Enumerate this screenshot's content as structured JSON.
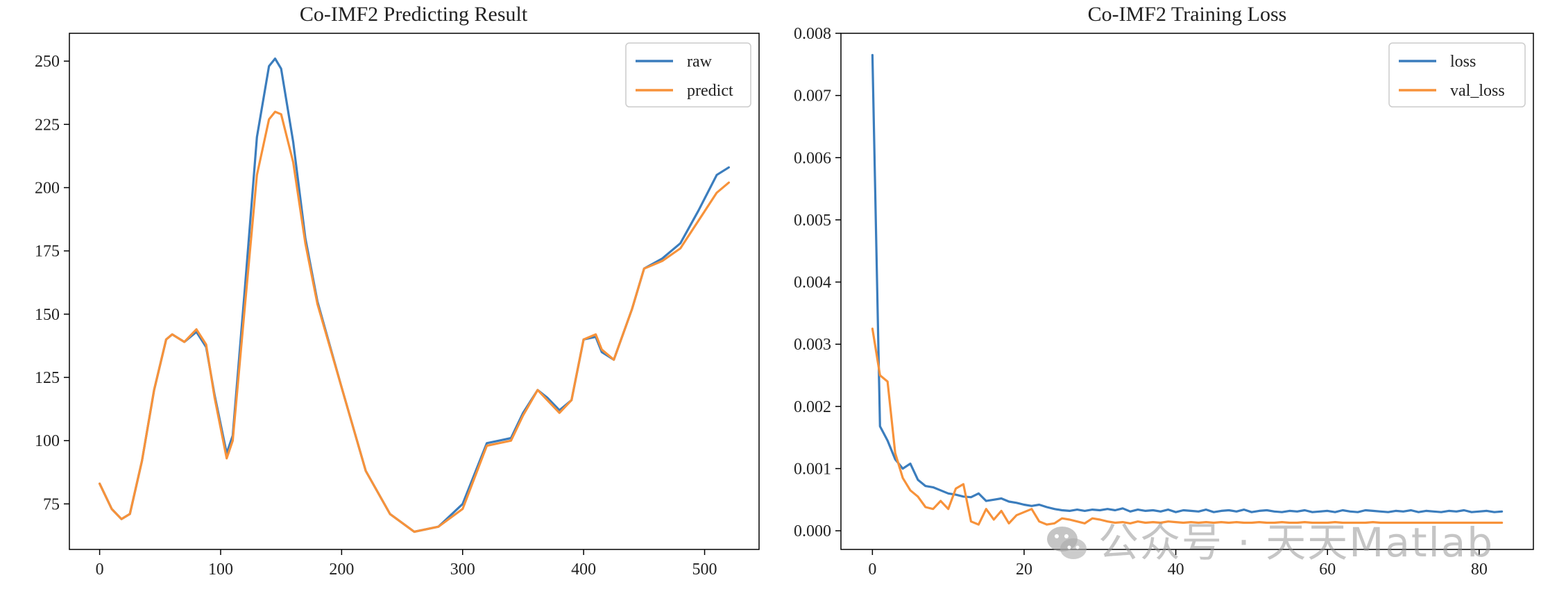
{
  "colors": {
    "raw": "#3b7dbd",
    "predict": "#f7923a"
  },
  "watermark": {
    "text": "公众号 · 天天Matlab",
    "icon": "wechat-icon"
  },
  "chart_data": [
    {
      "type": "line",
      "title": "Co-IMF2 Predicting Result",
      "xlabel": "",
      "ylabel": "",
      "xlim": [
        -25,
        545
      ],
      "ylim": [
        57,
        261
      ],
      "xticks": [
        0,
        100,
        200,
        300,
        400,
        500
      ],
      "yticks": [
        75,
        100,
        125,
        150,
        175,
        200,
        225,
        250
      ],
      "grid": false,
      "legend": "top-right",
      "series": [
        {
          "name": "raw",
          "x": [
            0,
            10,
            18,
            25,
            35,
            45,
            55,
            60,
            70,
            80,
            88,
            95,
            105,
            110,
            120,
            130,
            140,
            145,
            150,
            160,
            170,
            180,
            200,
            220,
            240,
            260,
            280,
            300,
            320,
            330,
            340,
            350,
            362,
            370,
            380,
            390,
            400,
            410,
            415,
            425,
            440,
            450,
            465,
            480,
            495,
            510,
            520
          ],
          "y": [
            83,
            73,
            69,
            71,
            92,
            120,
            140,
            142,
            139,
            143,
            137,
            118,
            95,
            102,
            160,
            220,
            248,
            251,
            247,
            218,
            180,
            155,
            121,
            88,
            71,
            64,
            66,
            75,
            99,
            100,
            101,
            111,
            120,
            117,
            112,
            116,
            140,
            141,
            135,
            132,
            152,
            168,
            172,
            178,
            191,
            205,
            208
          ]
        },
        {
          "name": "predict",
          "x": [
            0,
            10,
            18,
            25,
            35,
            45,
            55,
            60,
            70,
            80,
            88,
            95,
            105,
            110,
            120,
            130,
            140,
            145,
            150,
            160,
            170,
            180,
            200,
            220,
            240,
            260,
            280,
            300,
            320,
            330,
            340,
            350,
            362,
            370,
            380,
            390,
            400,
            410,
            415,
            425,
            440,
            450,
            465,
            480,
            495,
            510,
            520
          ],
          "y": [
            83,
            73,
            69,
            71,
            92,
            120,
            140,
            142,
            139,
            144,
            138,
            117,
            93,
            100,
            153,
            205,
            227,
            230,
            229,
            210,
            178,
            154,
            121,
            88,
            71,
            64,
            66,
            73,
            98,
            99,
            100,
            110,
            120,
            116,
            111,
            116,
            140,
            142,
            136,
            132,
            152,
            168,
            171,
            176,
            187,
            198,
            202
          ]
        }
      ]
    },
    {
      "type": "line",
      "title": "Co-IMF2 Training Loss",
      "xlabel": "",
      "ylabel": "",
      "xlim": [
        -4.15,
        87.15
      ],
      "ylim": [
        -0.0003,
        0.008
      ],
      "xticks": [
        0,
        20,
        40,
        60,
        80
      ],
      "yticks": [
        0.0,
        0.001,
        0.002,
        0.003,
        0.004,
        0.005,
        0.006,
        0.007,
        0.008
      ],
      "ytick_labels": [
        "0.000",
        "0.001",
        "0.002",
        "0.003",
        "0.004",
        "0.005",
        "0.006",
        "0.007",
        "0.008"
      ],
      "grid": false,
      "legend": "top-right",
      "series": [
        {
          "name": "loss",
          "x": [
            0,
            1,
            2,
            3,
            4,
            5,
            6,
            7,
            8,
            9,
            10,
            11,
            12,
            13,
            14,
            15,
            16,
            17,
            18,
            19,
            20,
            21,
            22,
            23,
            24,
            25,
            26,
            27,
            28,
            29,
            30,
            31,
            32,
            33,
            34,
            35,
            36,
            37,
            38,
            39,
            40,
            41,
            42,
            43,
            44,
            45,
            46,
            47,
            48,
            49,
            50,
            51,
            52,
            53,
            54,
            55,
            56,
            57,
            58,
            59,
            60,
            61,
            62,
            63,
            64,
            65,
            66,
            67,
            68,
            69,
            70,
            71,
            72,
            73,
            74,
            75,
            76,
            77,
            78,
            79,
            80,
            81,
            82,
            83
          ],
          "y": [
            0.00765,
            0.00168,
            0.00145,
            0.00115,
            0.001,
            0.00108,
            0.00082,
            0.00072,
            0.0007,
            0.00065,
            0.0006,
            0.00058,
            0.00055,
            0.00054,
            0.0006,
            0.00048,
            0.0005,
            0.00052,
            0.00047,
            0.00045,
            0.00042,
            0.0004,
            0.00042,
            0.00038,
            0.00035,
            0.00033,
            0.00032,
            0.00034,
            0.00032,
            0.00034,
            0.00033,
            0.00035,
            0.00033,
            0.00036,
            0.00031,
            0.00034,
            0.00032,
            0.00033,
            0.00031,
            0.00034,
            0.0003,
            0.00033,
            0.00032,
            0.00031,
            0.00034,
            0.0003,
            0.00032,
            0.00033,
            0.00031,
            0.00034,
            0.0003,
            0.00032,
            0.00033,
            0.00031,
            0.0003,
            0.00032,
            0.00031,
            0.00033,
            0.0003,
            0.00031,
            0.00032,
            0.0003,
            0.00033,
            0.00031,
            0.0003,
            0.00033,
            0.00032,
            0.00031,
            0.0003,
            0.00032,
            0.00031,
            0.00033,
            0.0003,
            0.00032,
            0.00031,
            0.0003,
            0.00032,
            0.00031,
            0.00033,
            0.0003,
            0.00031,
            0.00032,
            0.0003,
            0.00031
          ]
        },
        {
          "name": "val_loss",
          "x": [
            0,
            1,
            2,
            3,
            4,
            5,
            6,
            7,
            8,
            9,
            10,
            11,
            12,
            13,
            14,
            15,
            16,
            17,
            18,
            19,
            20,
            21,
            22,
            23,
            24,
            25,
            26,
            27,
            28,
            29,
            30,
            31,
            32,
            33,
            34,
            35,
            36,
            37,
            38,
            39,
            40,
            41,
            42,
            43,
            44,
            45,
            46,
            47,
            48,
            49,
            50,
            51,
            52,
            53,
            54,
            55,
            56,
            57,
            58,
            59,
            60,
            61,
            62,
            63,
            64,
            65,
            66,
            67,
            68,
            69,
            70,
            71,
            72,
            73,
            74,
            75,
            76,
            77,
            78,
            79,
            80,
            81,
            82,
            83
          ],
          "y": [
            0.00325,
            0.0025,
            0.0024,
            0.00125,
            0.00085,
            0.00065,
            0.00055,
            0.00038,
            0.00035,
            0.00048,
            0.00035,
            0.00068,
            0.00075,
            0.00015,
            0.0001,
            0.00035,
            0.00018,
            0.00032,
            0.00012,
            0.00025,
            0.0003,
            0.00035,
            0.00015,
            0.0001,
            0.00012,
            0.0002,
            0.00018,
            0.00015,
            0.00012,
            0.0002,
            0.00018,
            0.00015,
            0.00013,
            0.00014,
            0.00012,
            0.00015,
            0.00013,
            0.00014,
            0.00013,
            0.00015,
            0.00014,
            0.00013,
            0.00014,
            0.00013,
            0.00014,
            0.00013,
            0.00014,
            0.00013,
            0.00014,
            0.00013,
            0.00013,
            0.00014,
            0.00013,
            0.00013,
            0.00014,
            0.00013,
            0.00013,
            0.00014,
            0.00013,
            0.00013,
            0.00013,
            0.00014,
            0.00013,
            0.00013,
            0.00013,
            0.00013,
            0.00014,
            0.00013,
            0.00013,
            0.00013,
            0.00013,
            0.00013,
            0.00013,
            0.00013,
            0.00013,
            0.00013,
            0.00013,
            0.00013,
            0.00013,
            0.00013,
            0.00013,
            0.00013,
            0.00013,
            0.00013
          ]
        }
      ]
    }
  ]
}
